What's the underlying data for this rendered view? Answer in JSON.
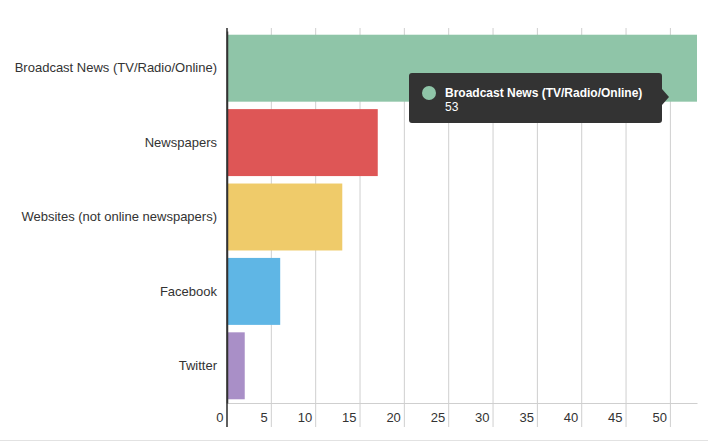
{
  "chart_data": {
    "type": "bar",
    "orientation": "horizontal",
    "categories": [
      "Broadcast News (TV/Radio/Online)",
      "Newspapers",
      "Websites (not online newspapers)",
      "Facebook",
      "Twitter"
    ],
    "values": [
      53,
      17,
      13,
      6,
      2
    ],
    "colors": [
      "#8fc5a8",
      "#de5656",
      "#efcb6a",
      "#5fb6e5",
      "#a98fc7"
    ],
    "xlim": [
      0,
      53
    ],
    "xticks": [
      0,
      5,
      10,
      15,
      20,
      25,
      30,
      35,
      40,
      45,
      50
    ],
    "grid": true
  }
}
